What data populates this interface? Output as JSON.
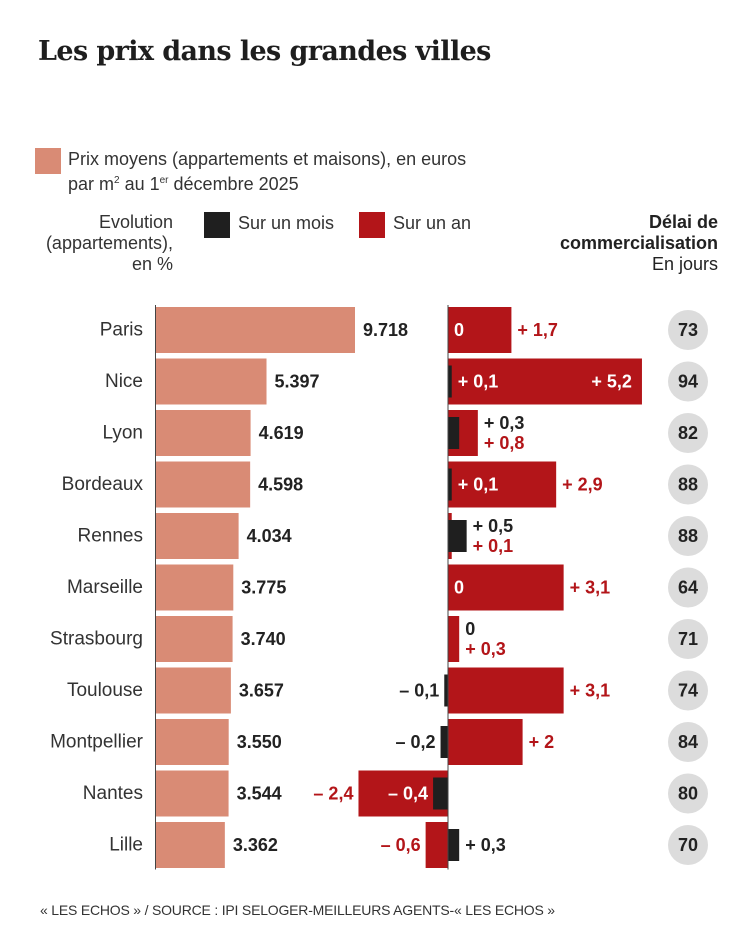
{
  "title": "Les prix dans les grandes villes",
  "legend": {
    "price_label_line1": "Prix moyens (appartements et maisons), en euros",
    "price_label_line2_a": "par m",
    "price_label_sup1": "2",
    "price_label_line2_b": " au 1",
    "price_label_sup2": "er",
    "price_label_line2_c": " décembre 2025",
    "evolution_line1": "Evolution",
    "evolution_line2": "(appartements),",
    "evolution_line3": "en %",
    "month_label": "Sur un mois",
    "year_label": "Sur un an",
    "delay_line1": "Délai de",
    "delay_line2": "commercialisation",
    "delay_line3": "En jours"
  },
  "colors": {
    "price": "#d98b75",
    "month": "#1f1f1f",
    "year": "#b31519",
    "year_text": "#b31519",
    "circle": "#dcdcdc"
  },
  "source": "« LES ECHOS » / SOURCE : IPI SELOGER-MEILLEURS AGENTS-« LES ECHOS »",
  "chart_data": {
    "type": "bar",
    "title": "Les prix dans les grandes villes",
    "categories": [
      "Paris",
      "Nice",
      "Lyon",
      "Bordeaux",
      "Rennes",
      "Marseille",
      "Strasbourg",
      "Toulouse",
      "Montpellier",
      "Nantes",
      "Lille"
    ],
    "series": [
      {
        "name": "Prix moyens (€/m²)",
        "values": [
          9718,
          5397,
          4619,
          4598,
          4034,
          3775,
          3740,
          3657,
          3550,
          3544,
          3362
        ],
        "labels": [
          "9.718",
          "5.397",
          "4.619",
          "4.598",
          "4.034",
          "3.775",
          "3.740",
          "3.657",
          "3.550",
          "3.544",
          "3.362"
        ]
      },
      {
        "name": "Sur un mois (%)",
        "values": [
          0,
          0.1,
          0.3,
          0.1,
          0.5,
          0,
          0,
          -0.1,
          -0.2,
          -0.4,
          0.3
        ],
        "labels": [
          "0",
          "+ 0,1",
          "+ 0,3",
          "+ 0,1",
          "+ 0,5",
          "0",
          "0",
          "– 0,1",
          "– 0,2",
          "– 0,4",
          "+ 0,3"
        ]
      },
      {
        "name": "Sur un an (%)",
        "values": [
          1.7,
          5.2,
          0.8,
          2.9,
          0.1,
          3.1,
          0.3,
          3.1,
          2,
          -2.4,
          -0.6
        ],
        "labels": [
          "+ 1,7",
          "+ 5,2",
          "+ 0,8",
          "+ 2,9",
          "+ 0,1",
          "+ 3,1",
          "+ 0,3",
          "+ 3,1",
          "+ 2",
          "– 2,4",
          "– 0,6"
        ]
      },
      {
        "name": "Délai de commercialisation (jours)",
        "values": [
          73,
          94,
          82,
          88,
          88,
          64,
          71,
          74,
          84,
          80,
          70
        ]
      }
    ],
    "xlabel": "",
    "ylabel": ""
  }
}
